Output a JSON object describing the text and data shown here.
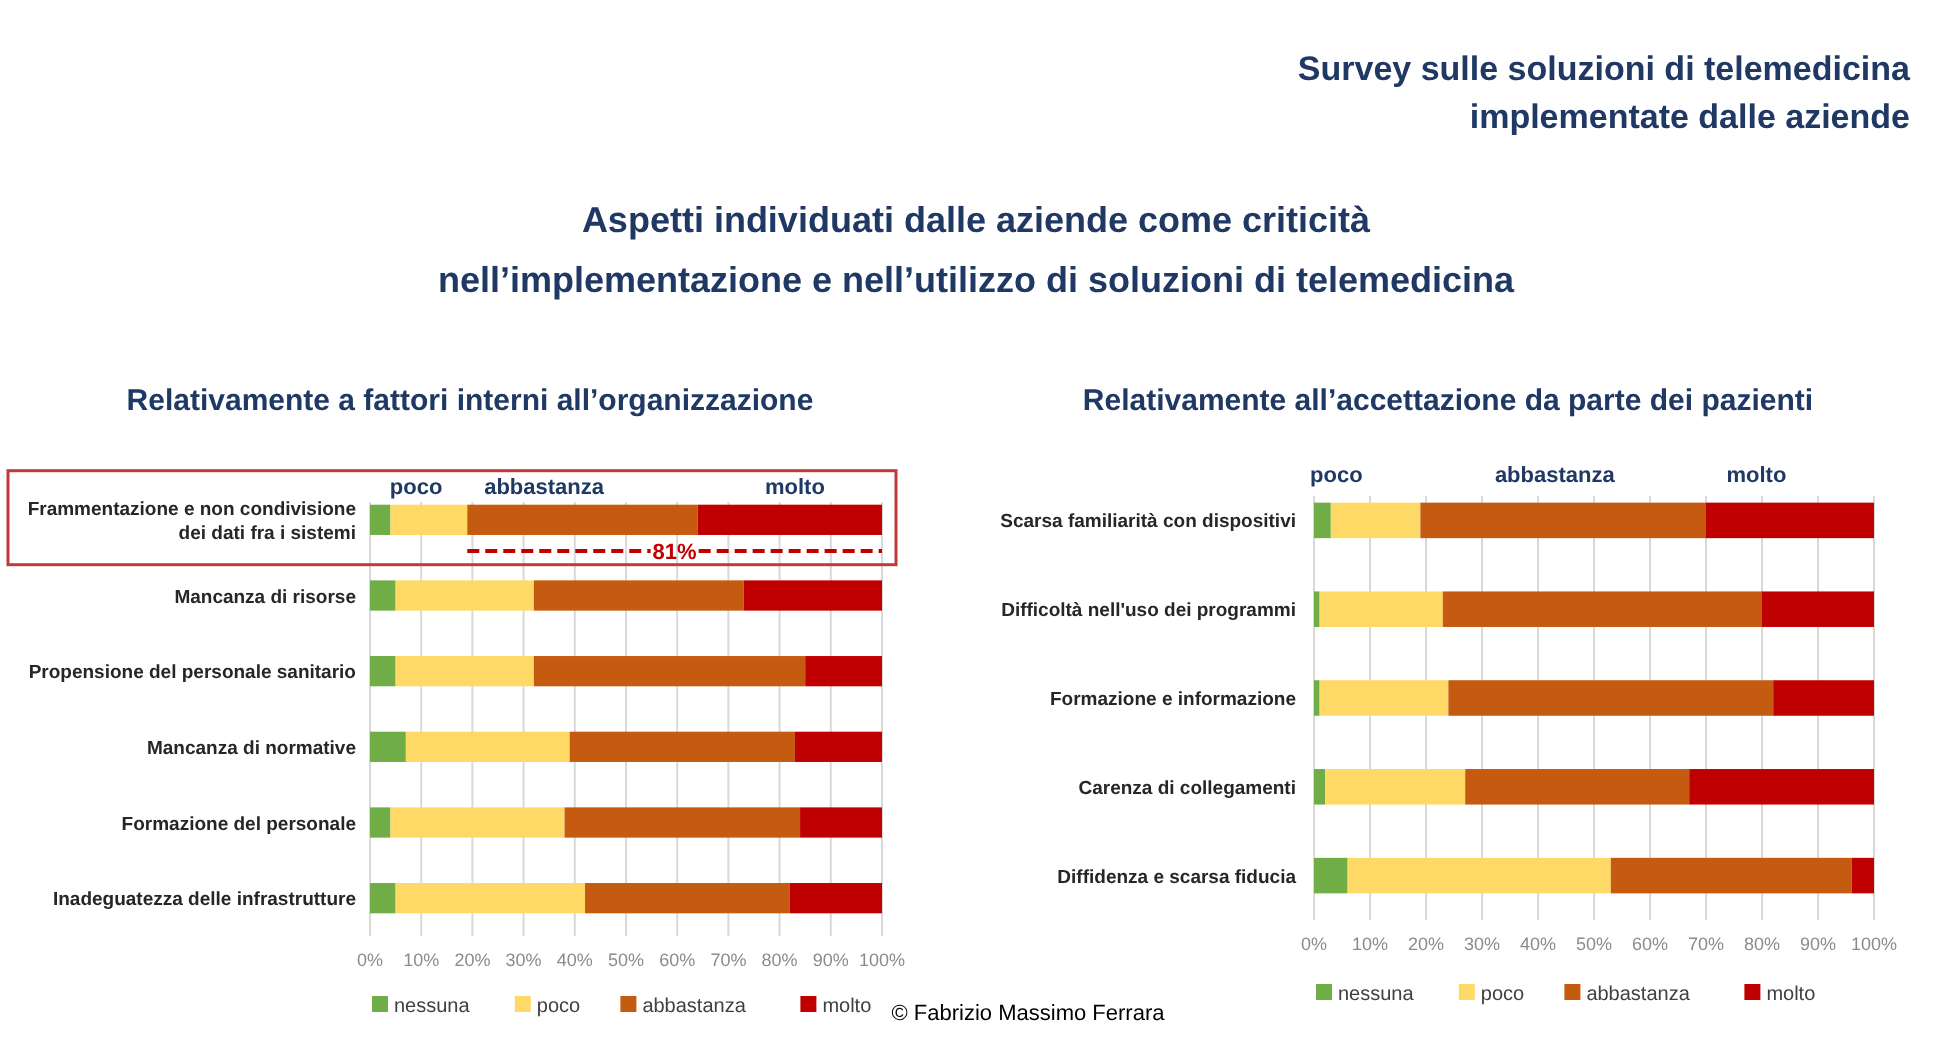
{
  "chart_data": [
    {
      "type": "bar",
      "orientation": "horizontal",
      "stacked": true,
      "title": "Relativamente a fattori interni all’organizzazione",
      "categories": [
        "Frammentazione e non condivisione dei dati fra i sistemi",
        "Mancanza di risorse",
        "Propensione del personale sanitario",
        "Mancanza di normative",
        "Formazione del personale",
        "Inadeguatezza delle infrastrutture"
      ],
      "series": [
        {
          "name": "nessuna",
          "color": "#70ad47",
          "values": [
            4,
            5,
            5,
            7,
            4,
            5
          ]
        },
        {
          "name": "poco",
          "color": "#ffd966",
          "values": [
            15,
            27,
            27,
            32,
            34,
            37
          ]
        },
        {
          "name": "abbastanza",
          "color": "#c55a11",
          "values": [
            45,
            41,
            53,
            44,
            46,
            40
          ]
        },
        {
          "name": "molto",
          "color": "#c00000",
          "values": [
            36,
            27,
            15,
            17,
            16,
            18
          ]
        }
      ],
      "xlim": [
        0,
        100
      ],
      "xticks": [
        {
          "value": 0,
          "label": "0%"
        },
        {
          "value": 10,
          "label": "10%"
        },
        {
          "value": 20,
          "label": "20%"
        },
        {
          "value": 30,
          "label": "30%"
        },
        {
          "value": 40,
          "label": "40%"
        },
        {
          "value": 50,
          "label": "50%"
        },
        {
          "value": 60,
          "label": "60%"
        },
        {
          "value": 70,
          "label": "70%"
        },
        {
          "value": 80,
          "label": "80%"
        },
        {
          "value": 90,
          "label": "90%"
        },
        {
          "value": 100,
          "label": "100%"
        }
      ],
      "grid": "x",
      "legend": "bottom",
      "annotations": [
        "Survey sulle soluzioni di telemedicina\nimplementate dalle aziende",
        "Aspetti individuati dalle aziende come criticità\nnell’implementazione e nell’utilizzo di soluzioni di telemedicina",
        "poco",
        "abbastanza",
        "molto",
        "81%",
        "© Fabrizio Massimo Ferrara"
      ]
    },
    {
      "type": "bar",
      "orientation": "horizontal",
      "stacked": true,
      "title": "Relativamente all’accettazione da parte dei pazienti",
      "categories": [
        "Scarsa familiarità con dispositivi",
        "Difficoltà nell'uso dei programmi",
        "Formazione e informazione",
        "Carenza di collegamenti",
        "Diffidenza e scarsa fiducia"
      ],
      "series": [
        {
          "name": "nessuna",
          "color": "#70ad47",
          "values": [
            3,
            1,
            1,
            2,
            6
          ]
        },
        {
          "name": "poco",
          "color": "#ffd966",
          "values": [
            16,
            22,
            23,
            25,
            47
          ]
        },
        {
          "name": "abbastanza",
          "color": "#c55a11",
          "values": [
            51,
            57,
            58,
            40,
            43
          ]
        },
        {
          "name": "molto",
          "color": "#c00000",
          "values": [
            30,
            20,
            18,
            33,
            4
          ]
        }
      ],
      "xlim": [
        0,
        100
      ],
      "xticks": [
        {
          "value": 0,
          "label": "0%"
        },
        {
          "value": 10,
          "label": "10%"
        },
        {
          "value": 20,
          "label": "20%"
        },
        {
          "value": 30,
          "label": "30%"
        },
        {
          "value": 40,
          "label": "40%"
        },
        {
          "value": 50,
          "label": "50%"
        },
        {
          "value": 60,
          "label": "60%"
        },
        {
          "value": 70,
          "label": "70%"
        },
        {
          "value": 80,
          "label": "80%"
        },
        {
          "value": 90,
          "label": "90%"
        },
        {
          "value": 100,
          "label": "100%"
        }
      ],
      "grid": "x",
      "legend": "bottom",
      "annotations": [
        "poco",
        "abbastanza",
        "molto"
      ]
    }
  ]
}
